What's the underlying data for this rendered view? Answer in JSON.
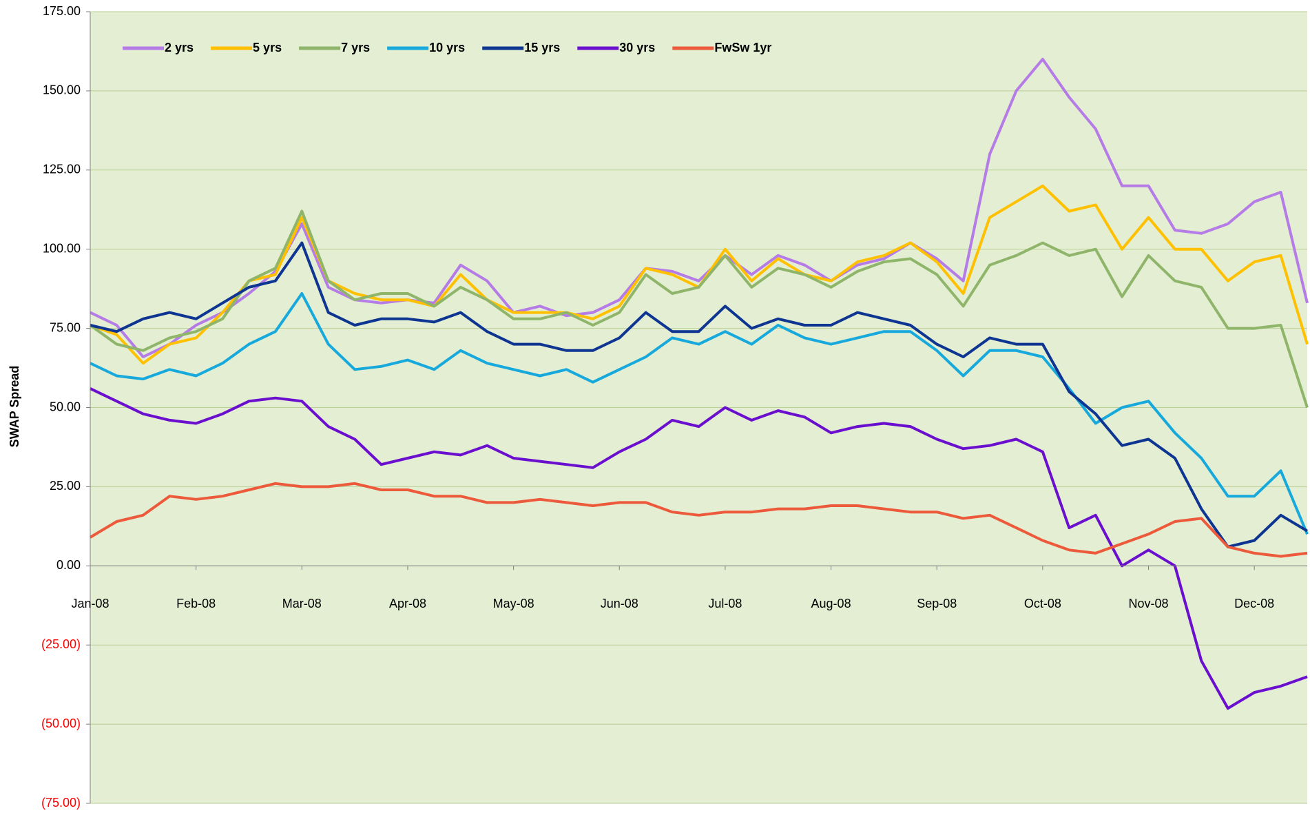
{
  "chart_data": {
    "type": "line",
    "y_label": "SWAP Spread",
    "categories": [
      "Jan-08",
      null,
      null,
      null,
      "Feb-08",
      null,
      null,
      null,
      "Mar-08",
      null,
      null,
      null,
      "Apr-08",
      null,
      null,
      null,
      "May-08",
      null,
      null,
      null,
      "Jun-08",
      null,
      null,
      null,
      "Jul-08",
      null,
      null,
      null,
      "Aug-08",
      null,
      null,
      null,
      "Sep-08",
      null,
      null,
      null,
      "Oct-08",
      null,
      null,
      null,
      "Nov-08",
      null,
      null,
      null,
      "Dec-08",
      null,
      null
    ],
    "series": [
      {
        "name": "2 yrs",
        "color": "#b57be6",
        "values": [
          80,
          76,
          66,
          70,
          76,
          80,
          86,
          93,
          108,
          88,
          84,
          83,
          84,
          83,
          95,
          90,
          80,
          82,
          79,
          80,
          84,
          94,
          93,
          90,
          98,
          92,
          98,
          95,
          90,
          95,
          97,
          102,
          97,
          90,
          130,
          150,
          160,
          148,
          138,
          120,
          120,
          106,
          105,
          108,
          115,
          118,
          83
        ]
      },
      {
        "name": "5 yrs",
        "color": "#ffc000",
        "values": [
          76,
          73,
          64,
          70,
          72,
          80,
          90,
          92,
          110,
          90,
          86,
          84,
          84,
          82,
          92,
          84,
          80,
          80,
          80,
          78,
          82,
          94,
          92,
          88,
          100,
          90,
          97,
          92,
          90,
          96,
          98,
          102,
          96,
          86,
          110,
          115,
          120,
          112,
          114,
          100,
          110,
          100,
          100,
          90,
          96,
          98,
          70
        ]
      },
      {
        "name": "7 yrs",
        "color": "#8fb56a",
        "values": [
          76,
          70,
          68,
          72,
          74,
          78,
          90,
          94,
          112,
          90,
          84,
          86,
          86,
          82,
          88,
          84,
          78,
          78,
          80,
          76,
          80,
          92,
          86,
          88,
          98,
          88,
          94,
          92,
          88,
          93,
          96,
          97,
          92,
          82,
          95,
          98,
          102,
          98,
          100,
          85,
          98,
          90,
          88,
          75,
          75,
          76,
          50
        ]
      },
      {
        "name": "10 yrs",
        "color": "#17a9dc",
        "values": [
          64,
          60,
          59,
          62,
          60,
          64,
          70,
          74,
          86,
          70,
          62,
          63,
          65,
          62,
          68,
          64,
          62,
          60,
          62,
          58,
          62,
          66,
          72,
          70,
          74,
          70,
          76,
          72,
          70,
          72,
          74,
          74,
          68,
          60,
          68,
          68,
          66,
          56,
          45,
          50,
          52,
          42,
          34,
          22,
          22,
          30,
          10
        ]
      },
      {
        "name": "15 yrs",
        "color": "#0d3591",
        "values": [
          76,
          74,
          78,
          80,
          78,
          83,
          88,
          90,
          102,
          80,
          76,
          78,
          78,
          77,
          80,
          74,
          70,
          70,
          68,
          68,
          72,
          80,
          74,
          74,
          82,
          75,
          78,
          76,
          76,
          80,
          78,
          76,
          70,
          66,
          72,
          70,
          70,
          55,
          48,
          38,
          40,
          34,
          18,
          6,
          8,
          16,
          11
        ]
      },
      {
        "name": "30 yrs",
        "color": "#6b0fcf",
        "values": [
          56,
          52,
          48,
          46,
          45,
          48,
          52,
          53,
          52,
          44,
          40,
          32,
          34,
          36,
          35,
          38,
          34,
          33,
          32,
          31,
          36,
          40,
          46,
          44,
          50,
          46,
          49,
          47,
          42,
          44,
          45,
          44,
          40,
          37,
          38,
          40,
          36,
          12,
          16,
          0,
          5,
          0,
          -30,
          -45,
          -40,
          -38,
          -35
        ]
      },
      {
        "name": "FwSw 1yr",
        "color": "#ec5a3b",
        "values": [
          9,
          14,
          16,
          22,
          21,
          22,
          24,
          26,
          25,
          25,
          26,
          24,
          24,
          22,
          22,
          20,
          20,
          21,
          20,
          19,
          20,
          20,
          17,
          16,
          17,
          17,
          18,
          18,
          19,
          19,
          18,
          17,
          17,
          15,
          16,
          12,
          8,
          5,
          4,
          7,
          10,
          14,
          15,
          6,
          4,
          3,
          4
        ]
      }
    ],
    "ylim": [
      -75,
      175
    ],
    "yticks": [
      {
        "value": 175,
        "label": "175.00"
      },
      {
        "value": 150,
        "label": "150.00"
      },
      {
        "value": 125,
        "label": "125.00"
      },
      {
        "value": 100,
        "label": "100.00"
      },
      {
        "value": 75,
        "label": "75.00"
      },
      {
        "value": 50,
        "label": "50.00"
      },
      {
        "value": 25,
        "label": "25.00"
      },
      {
        "value": 0,
        "label": "0.00"
      },
      {
        "value": -25,
        "label": "(25.00)"
      },
      {
        "value": -50,
        "label": "(50.00)"
      },
      {
        "value": -75,
        "label": "(75.00)"
      }
    ],
    "grid": true,
    "legend": "top"
  }
}
